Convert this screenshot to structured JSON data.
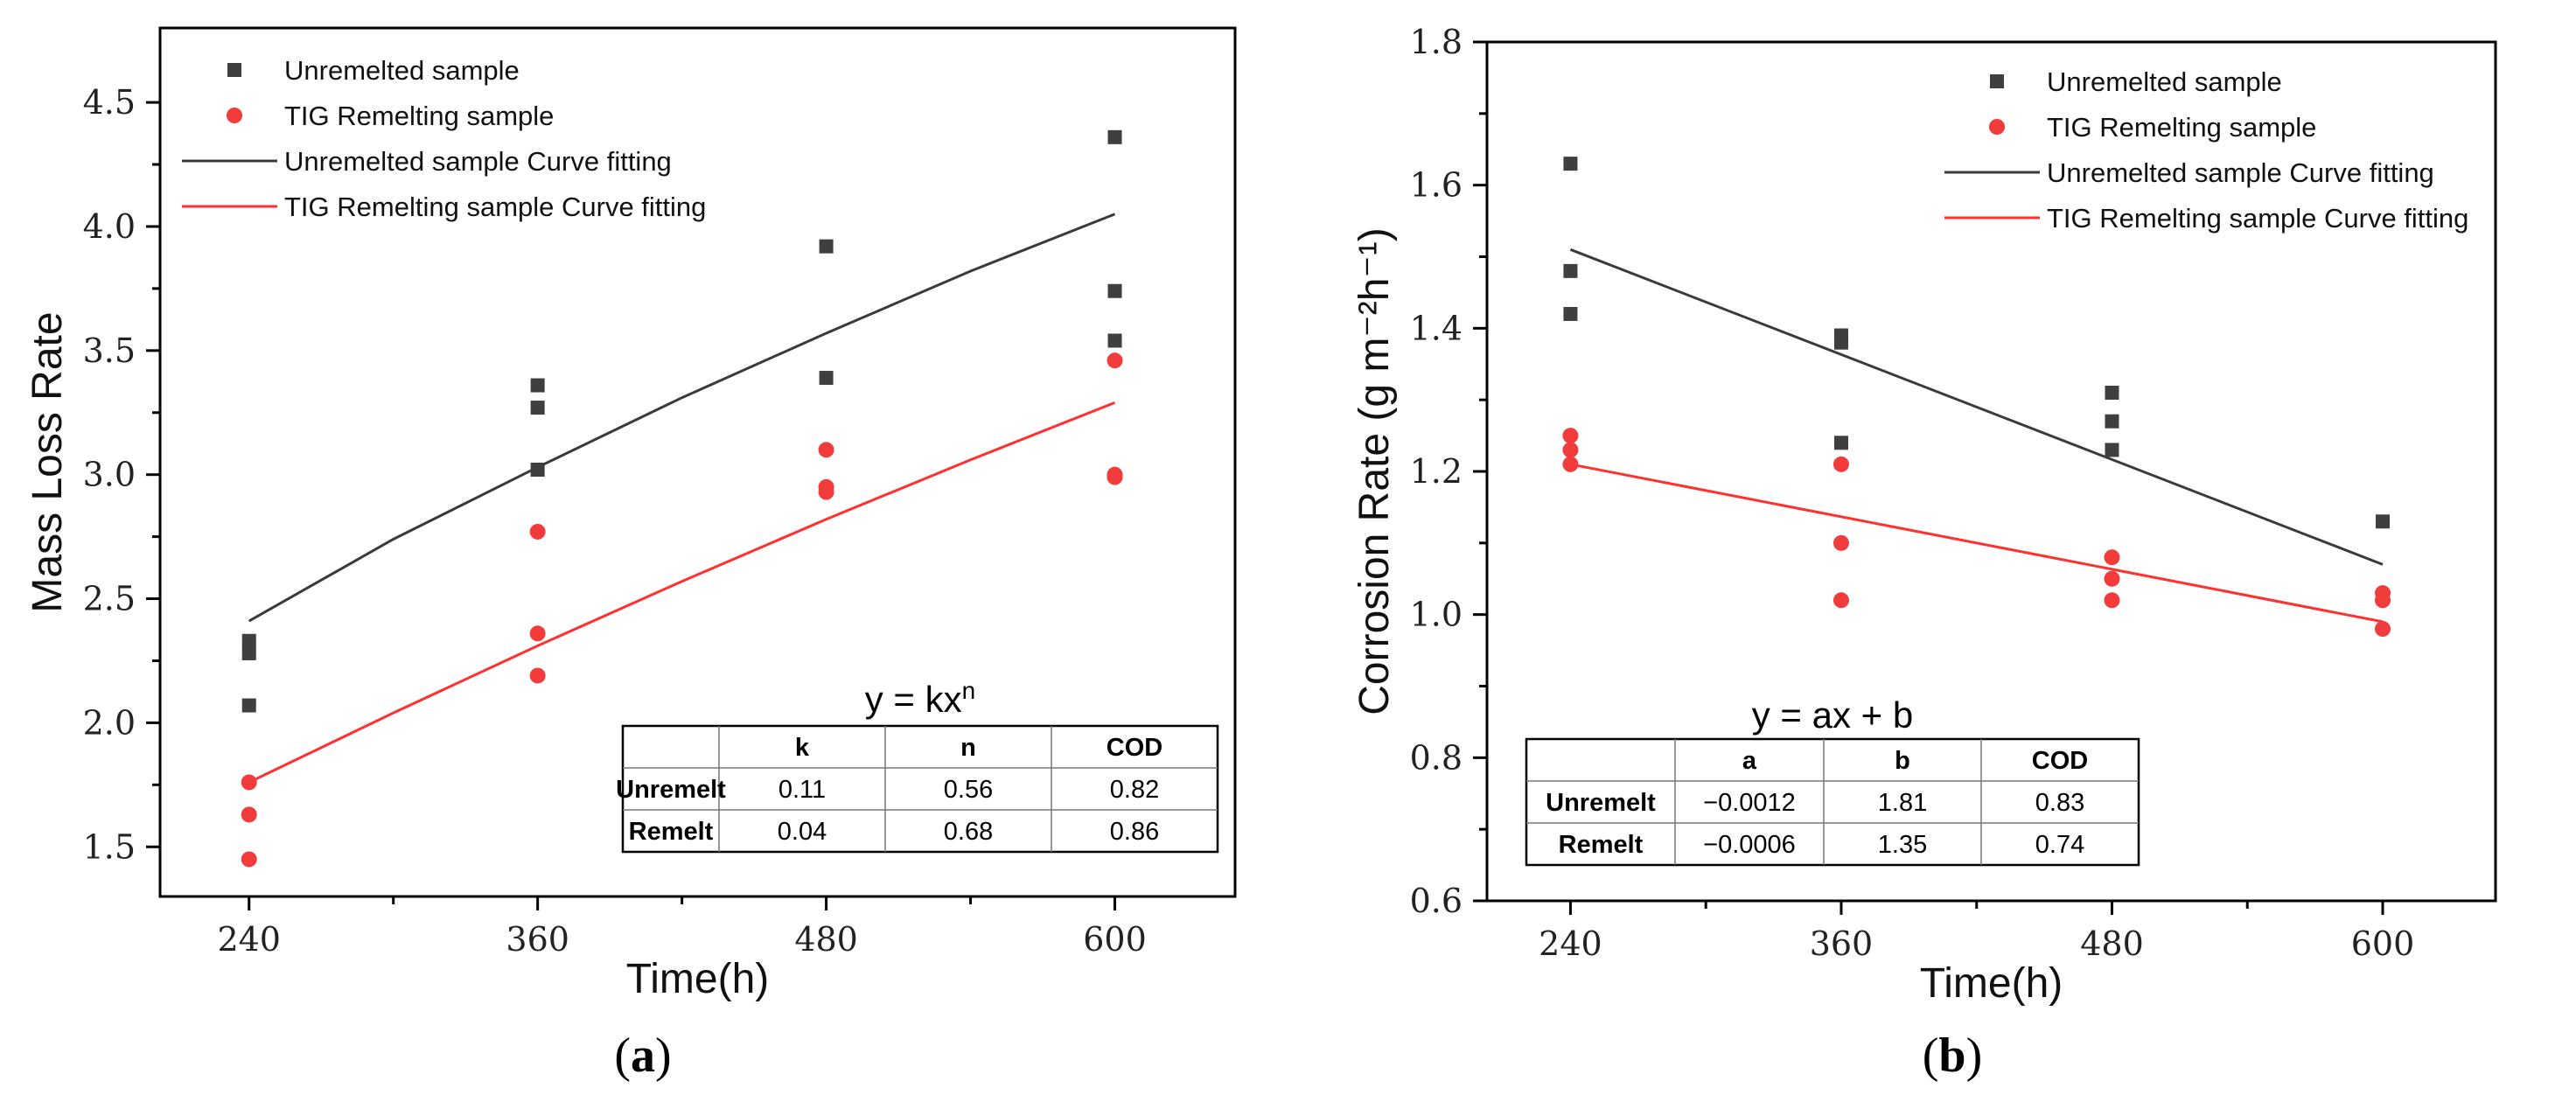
{
  "colors": {
    "unremelted": "#3f3f3f",
    "remelt": "#f23b3b",
    "unremelted_fit": "#3a3a3a",
    "remelt_fit": "#ff3030"
  },
  "chart_data": [
    {
      "type": "scatter",
      "panel_label_open": "(",
      "panel_label_letter": "a",
      "panel_label_close": ")",
      "xlabel": "Time(h)",
      "ylabel": "Mass Loss Rate",
      "xlim": [
        203,
        650
      ],
      "ylim": [
        1.3,
        4.8
      ],
      "xticks": [
        240,
        360,
        480,
        600
      ],
      "yticks": [
        1.5,
        2.0,
        2.5,
        3.0,
        3.5,
        4.0,
        4.5
      ],
      "ytick_labels": [
        "1.5",
        "2.0",
        "2.5",
        "3.0",
        "3.5",
        "4.0",
        "4.5"
      ],
      "legend": [
        "Unremelted sample",
        "TIG Remelting sample",
        "Unremelted sample Curve fitting",
        "TIG Remelting sample Curve fitting"
      ],
      "series": [
        {
          "name": "Unremelted sample",
          "points": [
            [
              240,
              2.33
            ],
            [
              240,
              2.28
            ],
            [
              240,
              2.07
            ],
            [
              360,
              3.36
            ],
            [
              360,
              3.27
            ],
            [
              360,
              3.02
            ],
            [
              480,
              3.92
            ],
            [
              480,
              3.39
            ],
            [
              600,
              4.36
            ],
            [
              600,
              3.74
            ],
            [
              600,
              3.54
            ]
          ]
        },
        {
          "name": "TIG Remelting sample",
          "points": [
            [
              240,
              1.76
            ],
            [
              240,
              1.63
            ],
            [
              240,
              1.45
            ],
            [
              360,
              2.77
            ],
            [
              360,
              2.36
            ],
            [
              360,
              2.19
            ],
            [
              480,
              3.1
            ],
            [
              480,
              2.95
            ],
            [
              480,
              2.93
            ],
            [
              600,
              3.46
            ],
            [
              600,
              3.0
            ],
            [
              600,
              2.99
            ]
          ]
        }
      ],
      "fits": [
        {
          "name": "Unremelted sample Curve fitting",
          "points": [
            [
              240,
              2.41
            ],
            [
              300,
              2.74
            ],
            [
              360,
              3.03
            ],
            [
              420,
              3.31
            ],
            [
              480,
              3.57
            ],
            [
              540,
              3.82
            ],
            [
              600,
              4.05
            ]
          ]
        },
        {
          "name": "TIG Remelting sample Curve fitting",
          "points": [
            [
              240,
              1.76
            ],
            [
              300,
              2.04
            ],
            [
              360,
              2.31
            ],
            [
              420,
              2.57
            ],
            [
              480,
              2.82
            ],
            [
              540,
              3.06
            ],
            [
              600,
              3.29
            ]
          ]
        }
      ],
      "table": {
        "equation_prefix": "y = kx",
        "equation_sup": "n",
        "headers": [
          "",
          "k",
          "n",
          "COD"
        ],
        "rows": [
          [
            "Unremelt",
            "0.11",
            "0.56",
            "0.82"
          ],
          [
            "Remelt",
            "0.04",
            "0.68",
            "0.86"
          ]
        ]
      }
    },
    {
      "type": "scatter",
      "panel_label_open": "(",
      "panel_label_letter": "b",
      "panel_label_close": ")",
      "xlabel": "Time(h)",
      "ylabel": "Corrosion Rate (g m⁻²h⁻¹)",
      "xlim": [
        203,
        650
      ],
      "ylim": [
        0.6,
        1.8
      ],
      "xticks": [
        240,
        360,
        480,
        600
      ],
      "yticks": [
        0.6,
        0.8,
        1.0,
        1.2,
        1.4,
        1.6,
        1.8
      ],
      "ytick_labels": [
        "0.6",
        "0.8",
        "1.0",
        "1.2",
        "1.4",
        "1.6",
        "1.8"
      ],
      "legend": [
        "Unremelted sample",
        "TIG Remelting sample",
        "Unremelted sample Curve fitting",
        "TIG Remelting sample Curve fitting"
      ],
      "series": [
        {
          "name": "Unremelted sample",
          "points": [
            [
              240,
              1.63
            ],
            [
              240,
              1.48
            ],
            [
              240,
              1.42
            ],
            [
              360,
              1.39
            ],
            [
              360,
              1.38
            ],
            [
              360,
              1.24
            ],
            [
              480,
              1.31
            ],
            [
              480,
              1.27
            ],
            [
              480,
              1.23
            ],
            [
              600,
              1.13
            ]
          ]
        },
        {
          "name": "TIG Remelting sample",
          "points": [
            [
              240,
              1.25
            ],
            [
              240,
              1.23
            ],
            [
              240,
              1.21
            ],
            [
              360,
              1.21
            ],
            [
              360,
              1.1
            ],
            [
              360,
              1.02
            ],
            [
              480,
              1.08
            ],
            [
              480,
              1.05
            ],
            [
              480,
              1.02
            ],
            [
              600,
              1.03
            ],
            [
              600,
              1.02
            ],
            [
              600,
              0.98
            ]
          ]
        }
      ],
      "fits": [
        {
          "name": "Unremelted sample Curve fitting",
          "points": [
            [
              240,
              1.51
            ],
            [
              600,
              1.07
            ]
          ]
        },
        {
          "name": "TIG Remelting sample Curve fitting",
          "points": [
            [
              240,
              1.21
            ],
            [
              600,
              0.99
            ]
          ]
        }
      ],
      "table": {
        "equation_prefix": "y = ax + b",
        "equation_sup": "",
        "headers": [
          "",
          "a",
          "b",
          "COD"
        ],
        "rows": [
          [
            "Unremelt",
            "−0.0012",
            "1.81",
            "0.83"
          ],
          [
            "Remelt",
            "−0.0006",
            "1.35",
            "0.74"
          ]
        ]
      }
    }
  ]
}
